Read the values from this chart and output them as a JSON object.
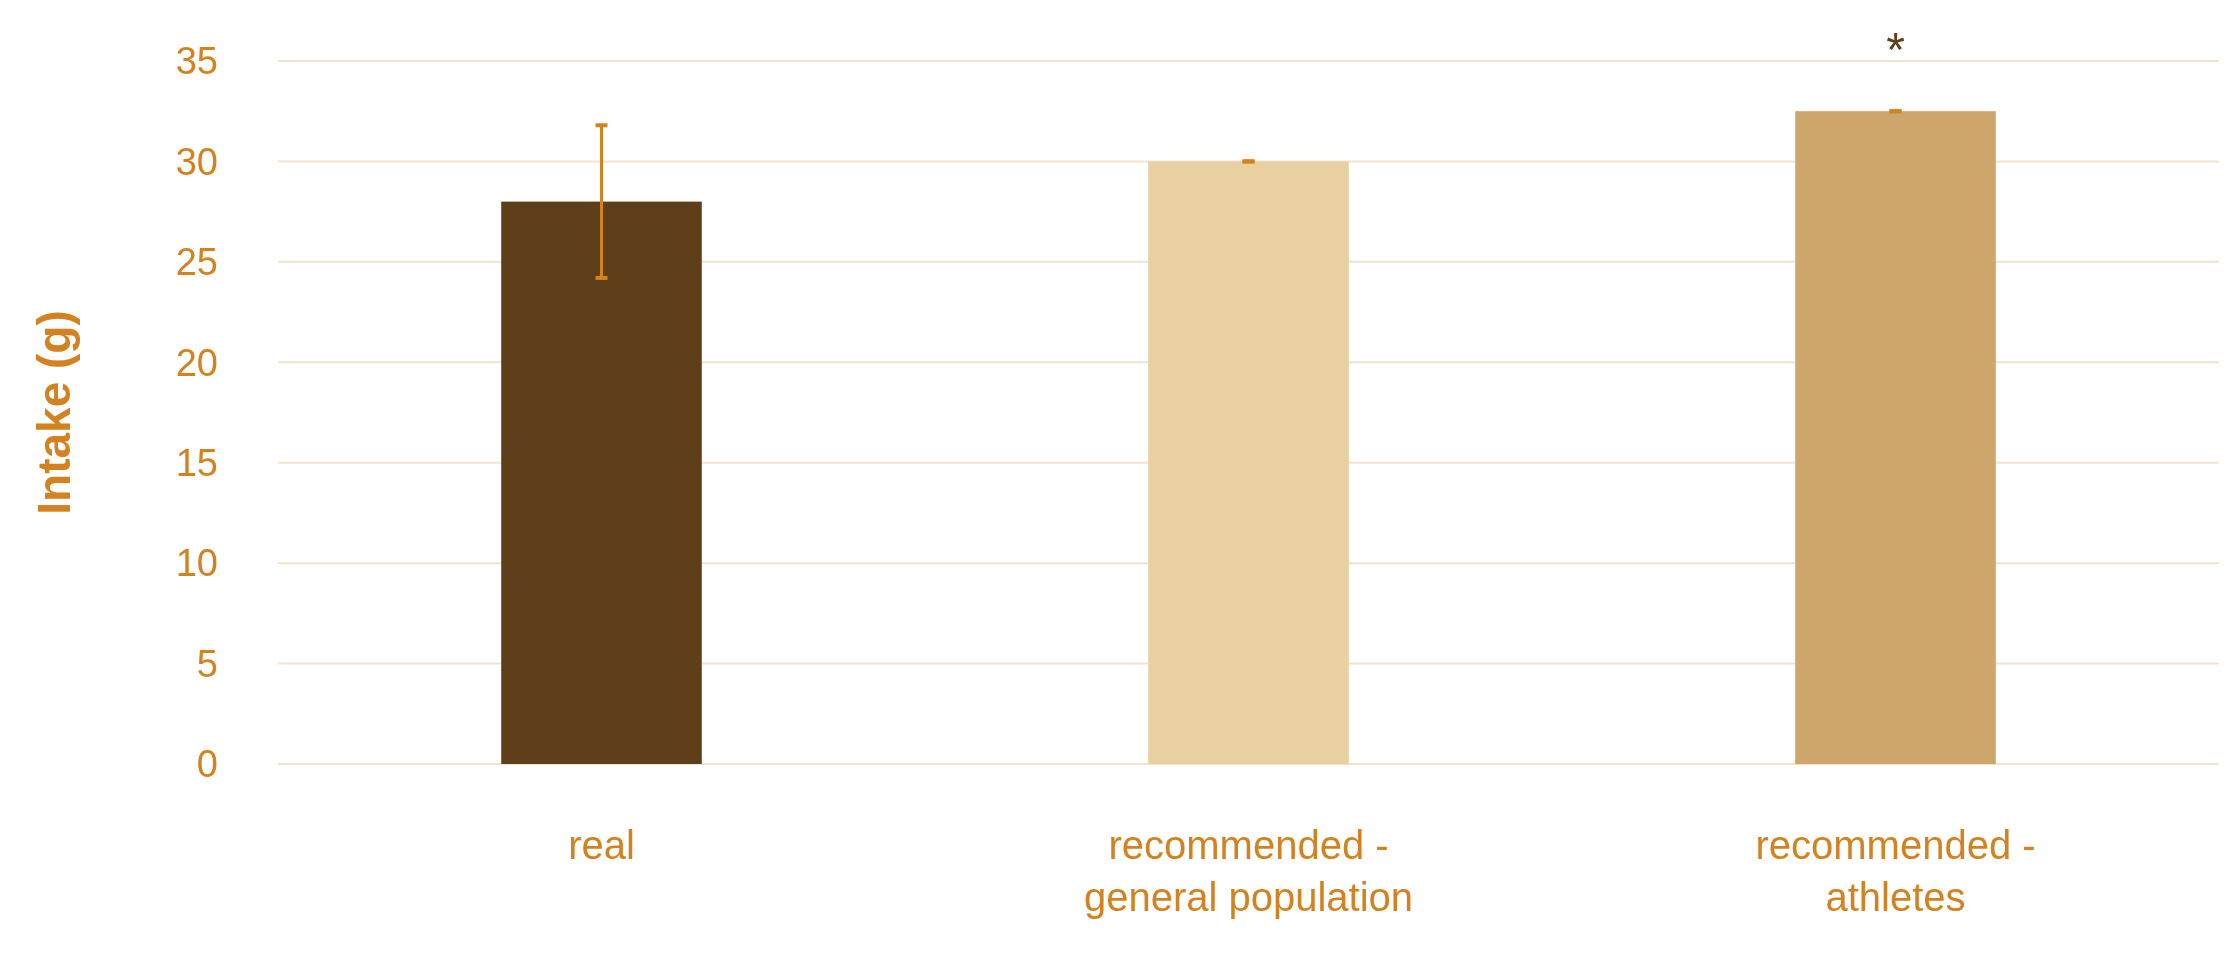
{
  "chart_data": {
    "type": "bar",
    "ylabel": "Intake (g)",
    "categories": [
      "real",
      "recommended - general population",
      "recommended - athletes"
    ],
    "values": [
      28,
      30,
      32.5
    ],
    "colors": [
      "#5f3f1a",
      "#e8d0a0",
      "#cea66c"
    ],
    "errors": [
      3.8,
      0,
      0
    ],
    "ylim": [
      0,
      35
    ],
    "yticks": [
      0,
      5,
      10,
      15,
      20,
      25,
      30,
      35
    ],
    "grid": "y",
    "annotations": [
      {
        "text": "*",
        "x": "recommended - athletes",
        "y": 32.5
      }
    ]
  }
}
